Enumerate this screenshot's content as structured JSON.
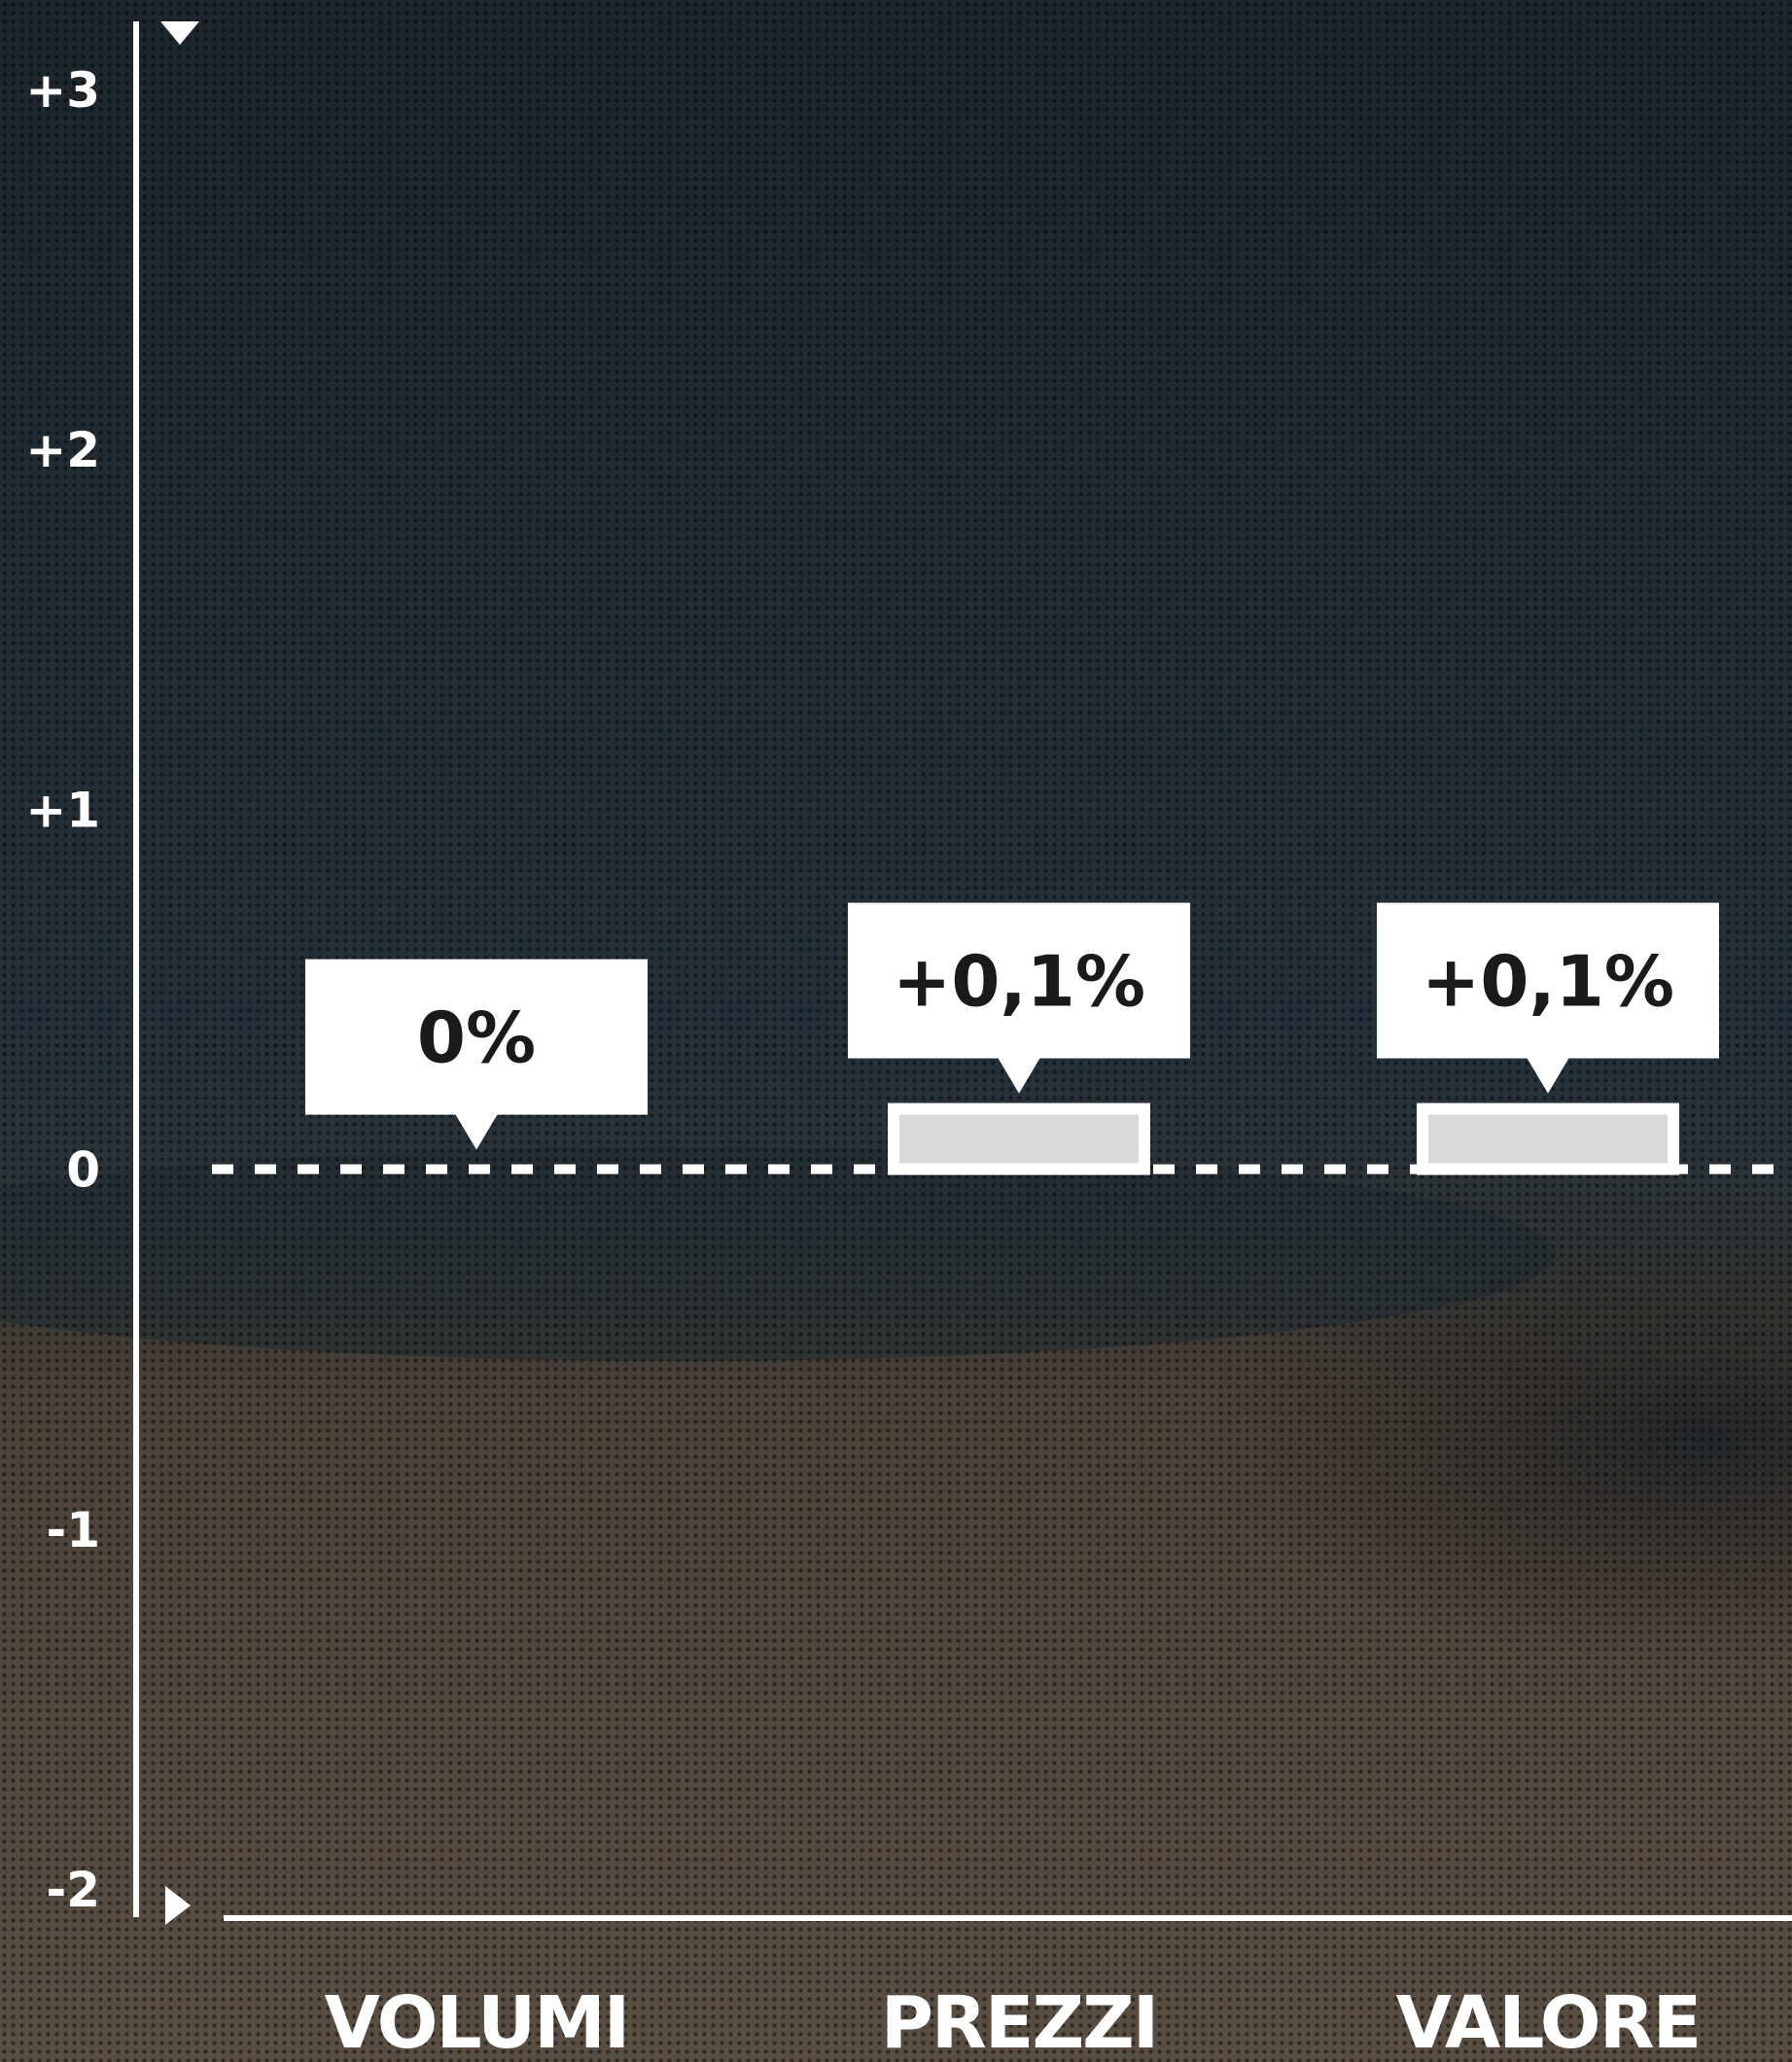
{
  "chart_data": {
    "type": "bar",
    "categories": [
      "VOLUMI",
      "PREZZI",
      "VALORE"
    ],
    "values": [
      0,
      0.1,
      0.1
    ],
    "value_labels": [
      "0%",
      "+0,1%",
      "+0,1%"
    ],
    "y_ticks": [
      "+3",
      "+2",
      "+1",
      "0",
      "-1",
      "-2"
    ],
    "y_tick_values": [
      3,
      2,
      1,
      0,
      -1,
      -2
    ],
    "ylim": [
      -2,
      3
    ],
    "title": "",
    "xlabel": "",
    "ylabel": "",
    "grid": false,
    "zero_line": "dashed",
    "colors": {
      "bar_fill": "#d9d9d9",
      "bar_border": "#ffffff",
      "callout_bg": "#ffffff",
      "callout_text": "#1a1a1a",
      "axis": "#ffffff",
      "sky_top": "#1d282e",
      "sky_bottom": "#26323a",
      "ground_top": "#4a4037",
      "ground_bottom": "#5e5246"
    }
  }
}
